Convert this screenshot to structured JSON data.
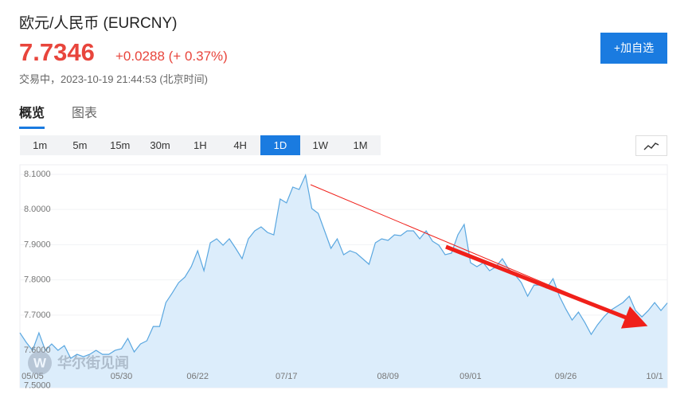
{
  "header": {
    "title": "欧元/人民币 (EURCNY)",
    "price": "7.7346",
    "change": "+0.0288 (+ 0.37%)",
    "status": "交易中，2023-10-19 21:44:53 (北京时间)"
  },
  "add_button": "+加自选",
  "tabs": [
    "概览",
    "图表"
  ],
  "active_tab": 0,
  "intervals": [
    "1m",
    "5m",
    "15m",
    "30m",
    "1H",
    "4H",
    "1D",
    "1W",
    "1M"
  ],
  "active_interval": 6,
  "watermark": "华尔街见闻",
  "chart_data": {
    "type": "area",
    "color": "#5aa7e0",
    "fill": "#dcedfb",
    "grid": true,
    "categories": [
      null,
      null,
      "05/05",
      null,
      null,
      null,
      null,
      null,
      null,
      null,
      null,
      null,
      null,
      null,
      null,
      null,
      "05/30",
      null,
      null,
      null,
      null,
      null,
      null,
      null,
      null,
      null,
      null,
      null,
      "06/22",
      null,
      null,
      null,
      null,
      null,
      null,
      null,
      null,
      null,
      null,
      null,
      null,
      null,
      "07/17",
      null,
      null,
      null,
      null,
      null,
      null,
      null,
      null,
      null,
      null,
      null,
      null,
      null,
      null,
      null,
      "08/09",
      null,
      null,
      null,
      null,
      null,
      null,
      null,
      null,
      null,
      null,
      null,
      null,
      "09/01",
      null,
      null,
      null,
      null,
      null,
      null,
      null,
      null,
      null,
      null,
      null,
      null,
      null,
      null,
      "09/26",
      null,
      null,
      null,
      null,
      null,
      null,
      null,
      null,
      null,
      null,
      null,
      null,
      null,
      "10/1",
      null,
      null
    ],
    "values": [
      7.6498,
      7.6226,
      7.6,
      7.6498,
      7.6,
      7.6181,
      7.6,
      7.6136,
      7.5774,
      7.5887,
      7.5819,
      7.5887,
      7.6,
      7.5887,
      7.5887,
      7.6,
      7.6045,
      7.6339,
      7.5955,
      7.6181,
      7.6271,
      7.6679,
      7.6679,
      7.7357,
      7.7629,
      7.7923,
      7.8081,
      7.8376,
      7.8828,
      7.8262,
      7.9054,
      7.9167,
      7.8986,
      7.9167,
      7.8896,
      7.8602,
      7.9167,
      7.9394,
      7.9507,
      7.9348,
      7.9281,
      8.0299,
      8.0186,
      8.0638,
      8.057,
      8.0977,
      8.0027,
      7.9891,
      7.9394,
      7.8896,
      7.9167,
      7.8715,
      7.8828,
      7.876,
      7.8602,
      7.8443,
      7.9054,
      7.9167,
      7.9122,
      7.9281,
      7.9258,
      7.9394,
      7.9394,
      7.9167,
      7.9394,
      7.91,
      7.8986,
      7.8715,
      7.876,
      7.9281,
      7.9575,
      7.8489,
      7.8376,
      7.8489,
      7.8262,
      7.8376,
      7.8602,
      7.8308,
      7.8149,
      7.7923,
      7.7538,
      7.7855,
      7.7855,
      7.7765,
      7.8036,
      7.7538,
      7.7176,
      7.686,
      7.7086,
      7.6792,
      7.6452,
      7.6724,
      7.695,
      7.7131,
      7.7244,
      7.7357,
      7.7538,
      7.7131,
      7.695,
      7.7131,
      7.7357,
      7.7131,
      7.7346
    ],
    "ylim": [
      7.494,
      8.127
    ],
    "yticks": [
      {
        "value": 7.5,
        "label": "7.5000"
      },
      {
        "value": 7.6,
        "label": "7.6000"
      },
      {
        "value": 7.7,
        "label": "7.7000"
      },
      {
        "value": 7.8,
        "label": "7.8000"
      },
      {
        "value": 7.9,
        "label": "7.9000"
      },
      {
        "value": 8.0,
        "label": "8.0000"
      },
      {
        "value": 8.1,
        "label": "8.1000"
      }
    ]
  }
}
